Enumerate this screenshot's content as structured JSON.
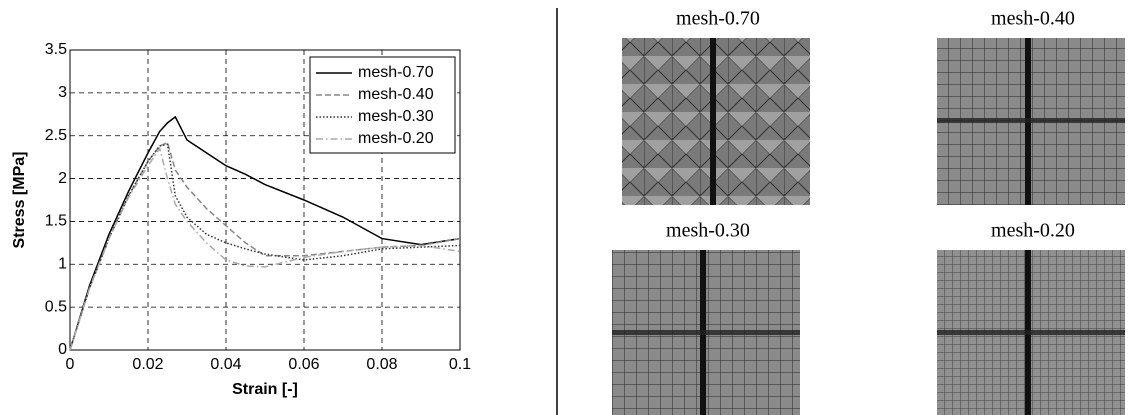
{
  "chart_data": {
    "type": "line",
    "xlabel": "Strain [-]",
    "ylabel": "Stress [MPa]",
    "x": [
      0,
      0.005,
      0.01,
      0.015,
      0.02,
      0.023,
      0.025,
      0.027,
      0.03,
      0.035,
      0.04,
      0.045,
      0.05,
      0.06,
      0.07,
      0.08,
      0.09,
      0.1
    ],
    "series": [
      {
        "name": "mesh-0.70",
        "color": "#000000",
        "linestyle": "solid",
        "values": [
          0,
          0.75,
          1.35,
          1.85,
          2.3,
          2.55,
          2.65,
          2.72,
          2.45,
          2.3,
          2.15,
          2.05,
          1.93,
          1.75,
          1.55,
          1.3,
          1.23,
          1.3
        ]
      },
      {
        "name": "mesh-0.40",
        "color": "#888888",
        "linestyle": "dashed",
        "values": [
          0,
          0.72,
          1.3,
          1.8,
          2.2,
          2.38,
          2.42,
          2.1,
          1.9,
          1.65,
          1.45,
          1.25,
          1.1,
          1.1,
          1.15,
          1.2,
          1.22,
          1.3
        ]
      },
      {
        "name": "mesh-0.30",
        "color": "#333333",
        "linestyle": "dotted",
        "values": [
          0,
          0.72,
          1.3,
          1.8,
          2.2,
          2.38,
          2.4,
          1.8,
          1.55,
          1.35,
          1.25,
          1.18,
          1.12,
          1.05,
          1.1,
          1.18,
          1.2,
          1.22
        ]
      },
      {
        "name": "mesh-0.20",
        "color": "#aaaaaa",
        "linestyle": "dashdot",
        "values": [
          0,
          0.72,
          1.3,
          1.78,
          2.15,
          2.35,
          2.0,
          1.7,
          1.5,
          1.25,
          1.05,
          0.98,
          0.97,
          1.08,
          1.15,
          1.2,
          1.22,
          1.15
        ]
      }
    ],
    "xlim": [
      0,
      0.1
    ],
    "xticks": [
      0,
      0.02,
      0.04,
      0.06,
      0.08,
      0.1
    ],
    "ylim": [
      0,
      3.5
    ],
    "yticks": [
      0,
      0.5,
      1,
      1.5,
      2,
      2.5,
      3,
      3.5
    ],
    "grid": true,
    "legend": "upper-right"
  },
  "panels": [
    {
      "label": "mesh-0.70"
    },
    {
      "label": "mesh-0.40"
    },
    {
      "label": "mesh-0.30"
    },
    {
      "label": "mesh-0.20"
    }
  ]
}
